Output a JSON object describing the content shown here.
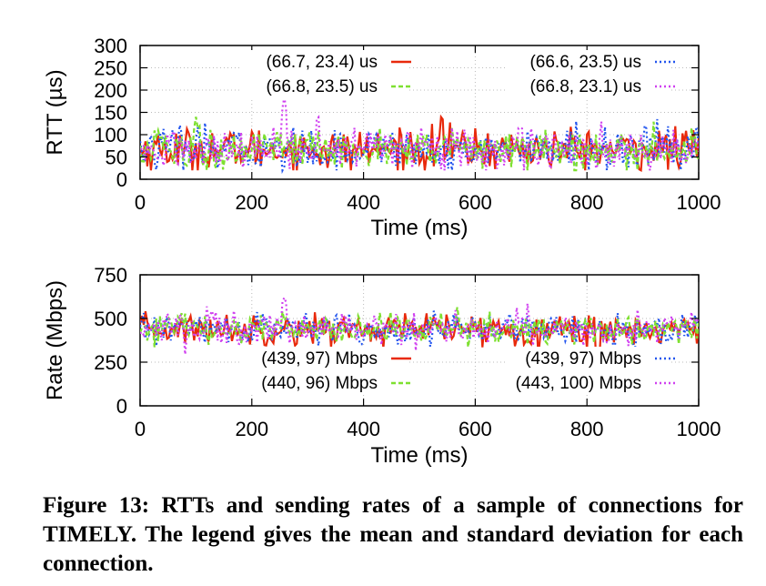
{
  "chart_data": [
    {
      "type": "line",
      "xlabel": "Time (ms)",
      "ylabel": "RTT (µs)",
      "xlim": [
        0,
        1000
      ],
      "ylim": [
        0,
        300
      ],
      "xticks": [
        0,
        200,
        400,
        600,
        800,
        1000
      ],
      "yticks": [
        0,
        50,
        100,
        150,
        200,
        250,
        300
      ],
      "grid": "dotted",
      "legend_placement": "top",
      "series": [
        {
          "name": "(66.7, 23.4) us",
          "color": "#e8290b",
          "style": "solid",
          "mean": 66.7,
          "std": 23.4,
          "spikes": [
            [
              540,
              150
            ]
          ]
        },
        {
          "name": "(66.6, 23.5) us",
          "color": "#2255ee",
          "style": "dotted",
          "mean": 66.6,
          "std": 23.5,
          "spikes": [
            [
              450,
              115
            ]
          ]
        },
        {
          "name": "(66.8, 23.5) us",
          "color": "#7ee030",
          "style": "dashed",
          "mean": 66.8,
          "std": 23.5,
          "spikes": [
            [
              100,
              140
            ]
          ]
        },
        {
          "name": "(66.8, 23.1) us",
          "color": "#d040f0",
          "style": "dotted",
          "mean": 66.8,
          "std": 23.1,
          "spikes": [
            [
              258,
              185
            ],
            [
              318,
              150
            ]
          ]
        }
      ]
    },
    {
      "type": "line",
      "xlabel": "Time (ms)",
      "ylabel": "Rate (Mbps)",
      "xlim": [
        0,
        1000
      ],
      "ylim": [
        0,
        750
      ],
      "xticks": [
        0,
        200,
        400,
        600,
        800,
        1000
      ],
      "yticks": [
        0,
        250,
        500,
        750
      ],
      "grid": "dotted",
      "legend_placement": "bottom",
      "series": [
        {
          "name": "(439, 97) Mbps",
          "color": "#e8290b",
          "style": "solid",
          "mean": 439,
          "std": 97,
          "spikes": [
            [
              820,
              310
            ]
          ]
        },
        {
          "name": "(439, 97) Mbps",
          "color": "#2255ee",
          "style": "dotted",
          "mean": 439,
          "std": 97,
          "spikes": [
            [
              48,
              500
            ],
            [
              655,
              495
            ]
          ]
        },
        {
          "name": "(440, 96) Mbps",
          "color": "#7ee030",
          "style": "dashed",
          "mean": 440,
          "std": 96,
          "spikes": [
            [
              560,
              450
            ]
          ]
        },
        {
          "name": "(443, 100) Mbps",
          "color": "#d040f0",
          "style": "dotted",
          "mean": 443,
          "std": 100,
          "spikes": [
            [
              258,
              620
            ]
          ]
        }
      ]
    }
  ],
  "caption": "Figure 13: RTTs and sending rates of a sample of connections for TIMELY. The legend gives the mean and standard deviation for each connection."
}
